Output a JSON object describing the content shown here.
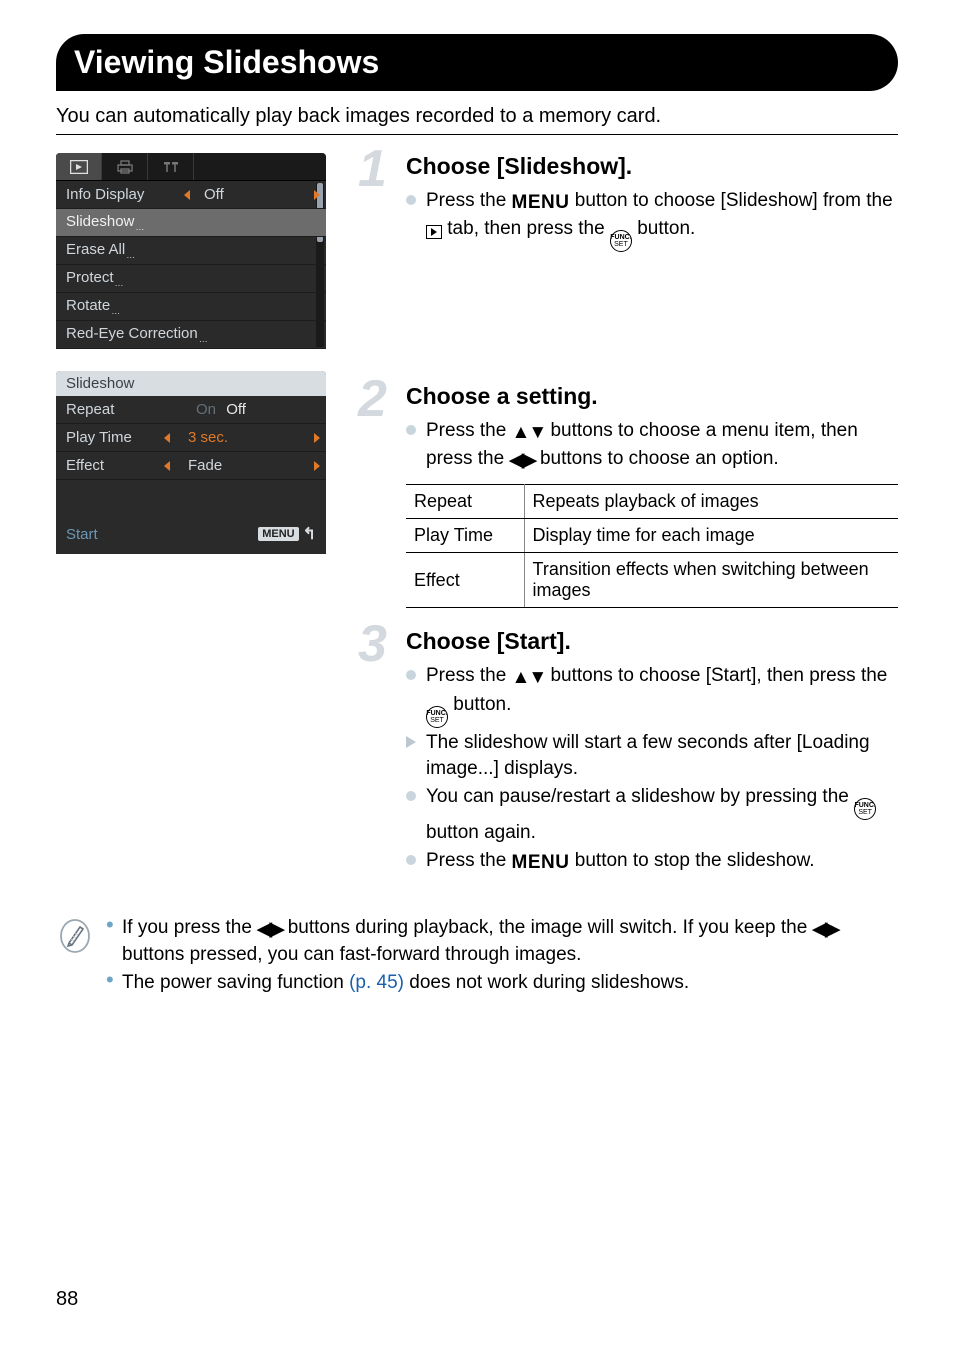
{
  "page": {
    "title": "Viewing Slideshows",
    "subtitle": "You can automatically play back images recorded to a memory card.",
    "number": "88"
  },
  "cam_menu1": {
    "tab_icons": [
      "play",
      "print",
      "tools"
    ],
    "rows": [
      {
        "label": "Info Display",
        "value": "Off",
        "has_left_arrow": true,
        "has_right_arrow": true
      },
      {
        "label": "Slideshow",
        "selected": true,
        "dots": true
      },
      {
        "label": "Erase All",
        "dots": true
      },
      {
        "label": "Protect",
        "dots": true
      },
      {
        "label": "Rotate",
        "dots": true
      },
      {
        "label": "Red-Eye Correction",
        "dots": true
      }
    ],
    "colors": {
      "bg": "#2a2a2a",
      "text": "#cfd6dc",
      "selected_bg": "#6c6c6c",
      "accent": "#e07a2a"
    }
  },
  "cam_menu2": {
    "header": "Slideshow",
    "rows": [
      {
        "label": "Repeat",
        "on": "On",
        "off": "Off"
      },
      {
        "label": "Play Time",
        "value": "3 sec.",
        "has_left_arrow": true,
        "has_right_arrow": true,
        "highlight": true
      },
      {
        "label": "Effect",
        "value": "Fade",
        "has_left_arrow": true,
        "has_right_arrow": true
      }
    ],
    "footer": {
      "start": "Start",
      "menu_label": "MENU"
    }
  },
  "steps": [
    {
      "num": "1",
      "title": "Choose [Slideshow].",
      "items": [
        {
          "type": "dot",
          "frags": [
            {
              "t": "Press the "
            },
            {
              "icon": "menu-word",
              "t": "MENU"
            },
            {
              "t": " button to choose [Slideshow] from the "
            },
            {
              "icon": "play-box"
            },
            {
              "t": " tab, then press the "
            },
            {
              "icon": "funcset"
            },
            {
              "t": " button."
            }
          ]
        }
      ]
    },
    {
      "num": "2",
      "title": "Choose a setting.",
      "items": [
        {
          "type": "dot",
          "frags": [
            {
              "t": "Press the "
            },
            {
              "icon": "ud"
            },
            {
              "t": " buttons to choose a menu item, then press the "
            },
            {
              "icon": "lr"
            },
            {
              "t": " buttons to choose an option."
            }
          ]
        }
      ],
      "table": [
        {
          "k": "Repeat",
          "v": "Repeats playback of images"
        },
        {
          "k": "Play Time",
          "v": "Display time for each image"
        },
        {
          "k": "Effect",
          "v": "Transition effects when switching between images"
        }
      ]
    },
    {
      "num": "3",
      "title": "Choose [Start].",
      "items": [
        {
          "type": "dot",
          "frags": [
            {
              "t": "Press the "
            },
            {
              "icon": "ud"
            },
            {
              "t": " buttons to choose [Start], then press the "
            },
            {
              "icon": "funcset"
            },
            {
              "t": " button."
            }
          ]
        },
        {
          "type": "tri",
          "frags": [
            {
              "t": "The slideshow will start a few seconds after [Loading image...] displays."
            }
          ]
        },
        {
          "type": "dot",
          "frags": [
            {
              "t": "You can pause/restart a slideshow by pressing the "
            },
            {
              "icon": "funcset"
            },
            {
              "t": " button again."
            }
          ]
        },
        {
          "type": "dot",
          "frags": [
            {
              "t": "Press the "
            },
            {
              "icon": "menu-word",
              "t": "MENU"
            },
            {
              "t": " button to stop the slideshow."
            }
          ]
        }
      ]
    }
  ],
  "note": {
    "items": [
      {
        "frags": [
          {
            "t": "If you press the "
          },
          {
            "icon": "lr"
          },
          {
            "t": " buttons during playback, the image will switch. If you keep the "
          },
          {
            "icon": "lr"
          },
          {
            "t": " buttons pressed, you can fast-forward through images."
          }
        ]
      },
      {
        "frags": [
          {
            "t": "The power saving function "
          },
          {
            "link": true,
            "t": "(p. 45)"
          },
          {
            "t": " does not work during slideshows."
          }
        ]
      }
    ]
  }
}
